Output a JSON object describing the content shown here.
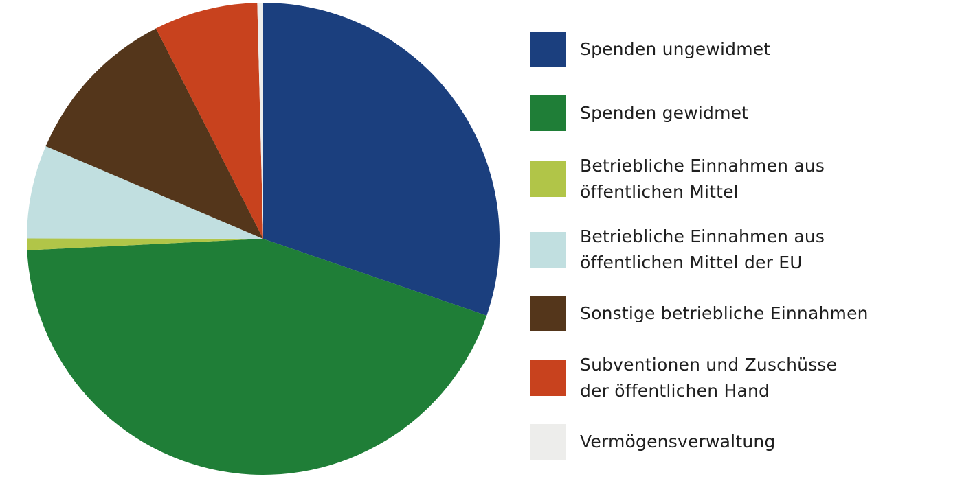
{
  "chart_data": {
    "type": "pie",
    "title": "",
    "legend_position": "right",
    "slices": [
      {
        "label_lines": [
          "Spenden ungewidmet"
        ],
        "value": 30.3,
        "color": "#1b3f7e"
      },
      {
        "label_lines": [
          "Spenden gewidmet"
        ],
        "value": 44.0,
        "color": "#1f7e37"
      },
      {
        "label_lines": [
          "Betriebliche Einnahmen aus",
          "öffentlichen Mittel"
        ],
        "value": 0.8,
        "color": "#b1c548"
      },
      {
        "label_lines": [
          "Betriebliche Einnahmen aus",
          "öffentlichen Mittel der EU"
        ],
        "value": 6.4,
        "color": "#c1dfe0"
      },
      {
        "label_lines": [
          "Sonstige betriebliche Einnahmen"
        ],
        "value": 11.1,
        "color": "#54361b"
      },
      {
        "label_lines": [
          "Subventionen und Zuschüsse",
          "der öffentlichen Hand"
        ],
        "value": 7.1,
        "color": "#c8421e"
      },
      {
        "label_lines": [
          "Vermögensverwaltung"
        ],
        "value": 0.4,
        "color": "#ededeb"
      }
    ]
  }
}
